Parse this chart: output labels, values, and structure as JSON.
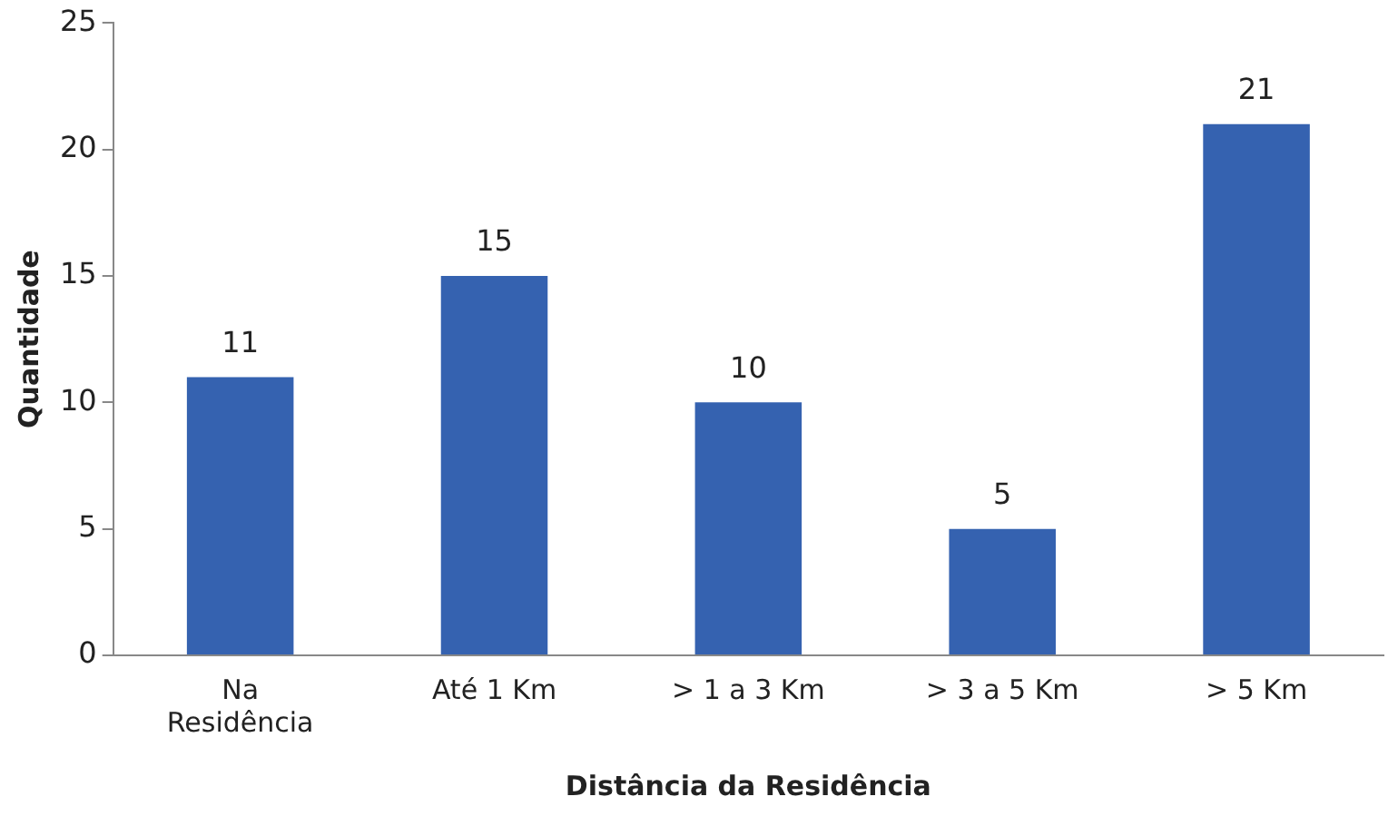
{
  "chart_data": {
    "type": "bar",
    "xlabel": "Distância da Residência",
    "ylabel": "Quantidade",
    "categories": [
      "Na Residência",
      "Até 1 Km",
      "> 1 a 3 Km",
      "> 3 a 5 Km",
      "> 5 Km"
    ],
    "values": [
      11,
      15,
      10,
      5,
      21
    ],
    "color": "#3562b0",
    "ylim": [
      0,
      25
    ],
    "yticks": [
      0,
      5,
      10,
      15,
      20,
      25
    ],
    "grid": false,
    "data_labels": true
  }
}
